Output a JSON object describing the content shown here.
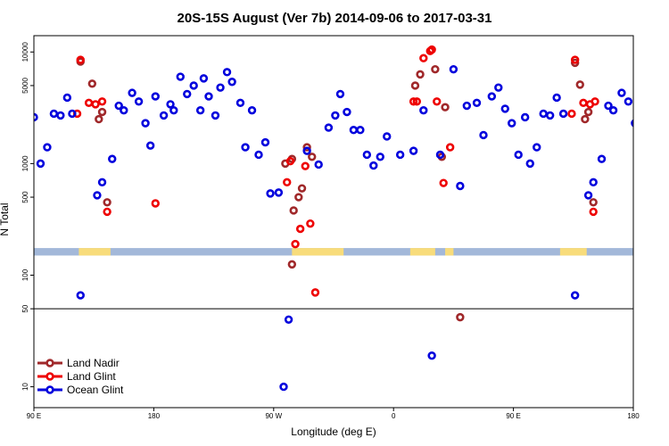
{
  "chart_data": {
    "type": "scatter",
    "title": "20S-15S August (Ver 7b)   2014-09-06 to 2017-03-31",
    "xlabel": "Longitude (deg E)",
    "ylabel": "N Total",
    "y_scale": "log",
    "xlim": [
      90,
      450
    ],
    "ylim": [
      6.5,
      14000
    ],
    "x_ticks": [
      {
        "value": 90,
        "label": "90 E"
      },
      {
        "value": 162,
        "label": "180"
      },
      {
        "value": 234,
        "label": "90 W"
      },
      {
        "value": 306,
        "label": "0"
      },
      {
        "value": 378,
        "label": "90 E"
      },
      {
        "value": 450,
        "label": "180"
      }
    ],
    "y_ticks": [
      {
        "value": 10,
        "label": "10"
      },
      {
        "value": 50,
        "label": "50"
      },
      {
        "value": 100,
        "label": "100"
      },
      {
        "value": 500,
        "label": "500"
      },
      {
        "value": 1000,
        "label": "1000"
      },
      {
        "value": 5000,
        "label": "5000"
      },
      {
        "value": 10000,
        "label": "10000"
      }
    ],
    "divider_y": 50,
    "legend_position": "bottom-left",
    "surface_band": {
      "y_range": [
        150,
        175
      ],
      "ocean_color": "#a3b8d9",
      "land_color": "#f8dc7b",
      "land_segments": [
        [
          117,
          136
        ],
        [
          245,
          276
        ],
        [
          316,
          331
        ],
        [
          337,
          342
        ],
        [
          406,
          422
        ]
      ]
    },
    "series": [
      {
        "name": "Land Nadir",
        "color": "#a0282a",
        "points": [
          [
            118,
            8200
          ],
          [
            125,
            5200
          ],
          [
            129,
            2500
          ],
          [
            131,
            2900
          ],
          [
            134,
            450
          ],
          [
            241,
            1000
          ],
          [
            245,
            1100
          ],
          [
            254,
            1400
          ],
          [
            257,
            1150
          ],
          [
            251,
            600
          ],
          [
            249,
            500
          ],
          [
            246,
            380
          ],
          [
            245,
            125
          ],
          [
            331,
            7000
          ],
          [
            319,
            5000
          ],
          [
            322,
            6300
          ],
          [
            335,
            1150
          ],
          [
            346,
            42
          ],
          [
            337,
            3200
          ],
          [
            415,
            8000
          ],
          [
            418,
            5100
          ],
          [
            421,
            2500
          ],
          [
            423,
            2900
          ],
          [
            426,
            450
          ]
        ]
      },
      {
        "name": "Land Glint",
        "color": "#ee0000",
        "points": [
          [
            118,
            8500
          ],
          [
            116,
            2800
          ],
          [
            123,
            3500
          ],
          [
            127,
            3400
          ],
          [
            131,
            3600
          ],
          [
            134,
            370
          ],
          [
            163,
            440
          ],
          [
            242,
            680
          ],
          [
            244,
            1050
          ],
          [
            247,
            190
          ],
          [
            250,
            260
          ],
          [
            253,
            950
          ],
          [
            256,
            290
          ],
          [
            259,
            70
          ],
          [
            318,
            3600
          ],
          [
            320,
            3600
          ],
          [
            324,
            8800
          ],
          [
            328,
            10200
          ],
          [
            329,
            10500
          ],
          [
            332,
            3600
          ],
          [
            336,
            670
          ],
          [
            340,
            1400
          ],
          [
            415,
            8500
          ],
          [
            413,
            2800
          ],
          [
            420,
            3500
          ],
          [
            424,
            3400
          ],
          [
            427,
            3600
          ],
          [
            426,
            370
          ]
        ]
      },
      {
        "name": "Ocean Glint",
        "color": "#0000dd",
        "points": [
          [
            90,
            2600
          ],
          [
            94,
            1000
          ],
          [
            98,
            1400
          ],
          [
            102,
            2800
          ],
          [
            106,
            2700
          ],
          [
            110,
            3900
          ],
          [
            113,
            2800
          ],
          [
            118,
            66
          ],
          [
            128,
            520
          ],
          [
            131,
            680
          ],
          [
            137,
            1100
          ],
          [
            141,
            3300
          ],
          [
            144,
            3000
          ],
          [
            149,
            4300
          ],
          [
            153,
            3600
          ],
          [
            157,
            2300
          ],
          [
            160,
            1450
          ],
          [
            163,
            4000
          ],
          [
            168,
            2700
          ],
          [
            172,
            3400
          ],
          [
            174,
            3000
          ],
          [
            178,
            6000
          ],
          [
            182,
            4200
          ],
          [
            186,
            5000
          ],
          [
            190,
            3000
          ],
          [
            192,
            5800
          ],
          [
            195,
            4000
          ],
          [
            199,
            2700
          ],
          [
            202,
            4800
          ],
          [
            206,
            6600
          ],
          [
            209,
            5400
          ],
          [
            214,
            3500
          ],
          [
            217,
            1400
          ],
          [
            221,
            3000
          ],
          [
            225,
            1200
          ],
          [
            229,
            1550
          ],
          [
            232,
            540
          ],
          [
            237,
            550
          ],
          [
            240,
            10
          ],
          [
            243,
            40
          ],
          [
            254,
            1300
          ],
          [
            261,
            980
          ],
          [
            267,
            2100
          ],
          [
            271,
            2700
          ],
          [
            274,
            4200
          ],
          [
            278,
            2900
          ],
          [
            282,
            2000
          ],
          [
            286,
            2000
          ],
          [
            290,
            1200
          ],
          [
            294,
            960
          ],
          [
            298,
            1150
          ],
          [
            302,
            1750
          ],
          [
            310,
            1200
          ],
          [
            318,
            1300
          ],
          [
            324,
            3000
          ],
          [
            329,
            19
          ],
          [
            334,
            1200
          ],
          [
            342,
            7000
          ],
          [
            346,
            630
          ],
          [
            350,
            3300
          ],
          [
            356,
            3500
          ],
          [
            360,
            1800
          ],
          [
            365,
            4000
          ],
          [
            369,
            4800
          ],
          [
            373,
            3100
          ],
          [
            377,
            2300
          ],
          [
            381,
            1200
          ],
          [
            385,
            2600
          ],
          [
            388,
            1000
          ],
          [
            392,
            1400
          ],
          [
            396,
            2800
          ],
          [
            400,
            2700
          ],
          [
            404,
            3900
          ],
          [
            408,
            2800
          ],
          [
            415,
            66
          ],
          [
            423,
            520
          ],
          [
            426,
            680
          ],
          [
            431,
            1100
          ],
          [
            435,
            3300
          ],
          [
            438,
            3000
          ],
          [
            443,
            4300
          ],
          [
            447,
            3600
          ],
          [
            451,
            2300
          ],
          [
            454,
            1450
          ]
        ]
      }
    ]
  }
}
